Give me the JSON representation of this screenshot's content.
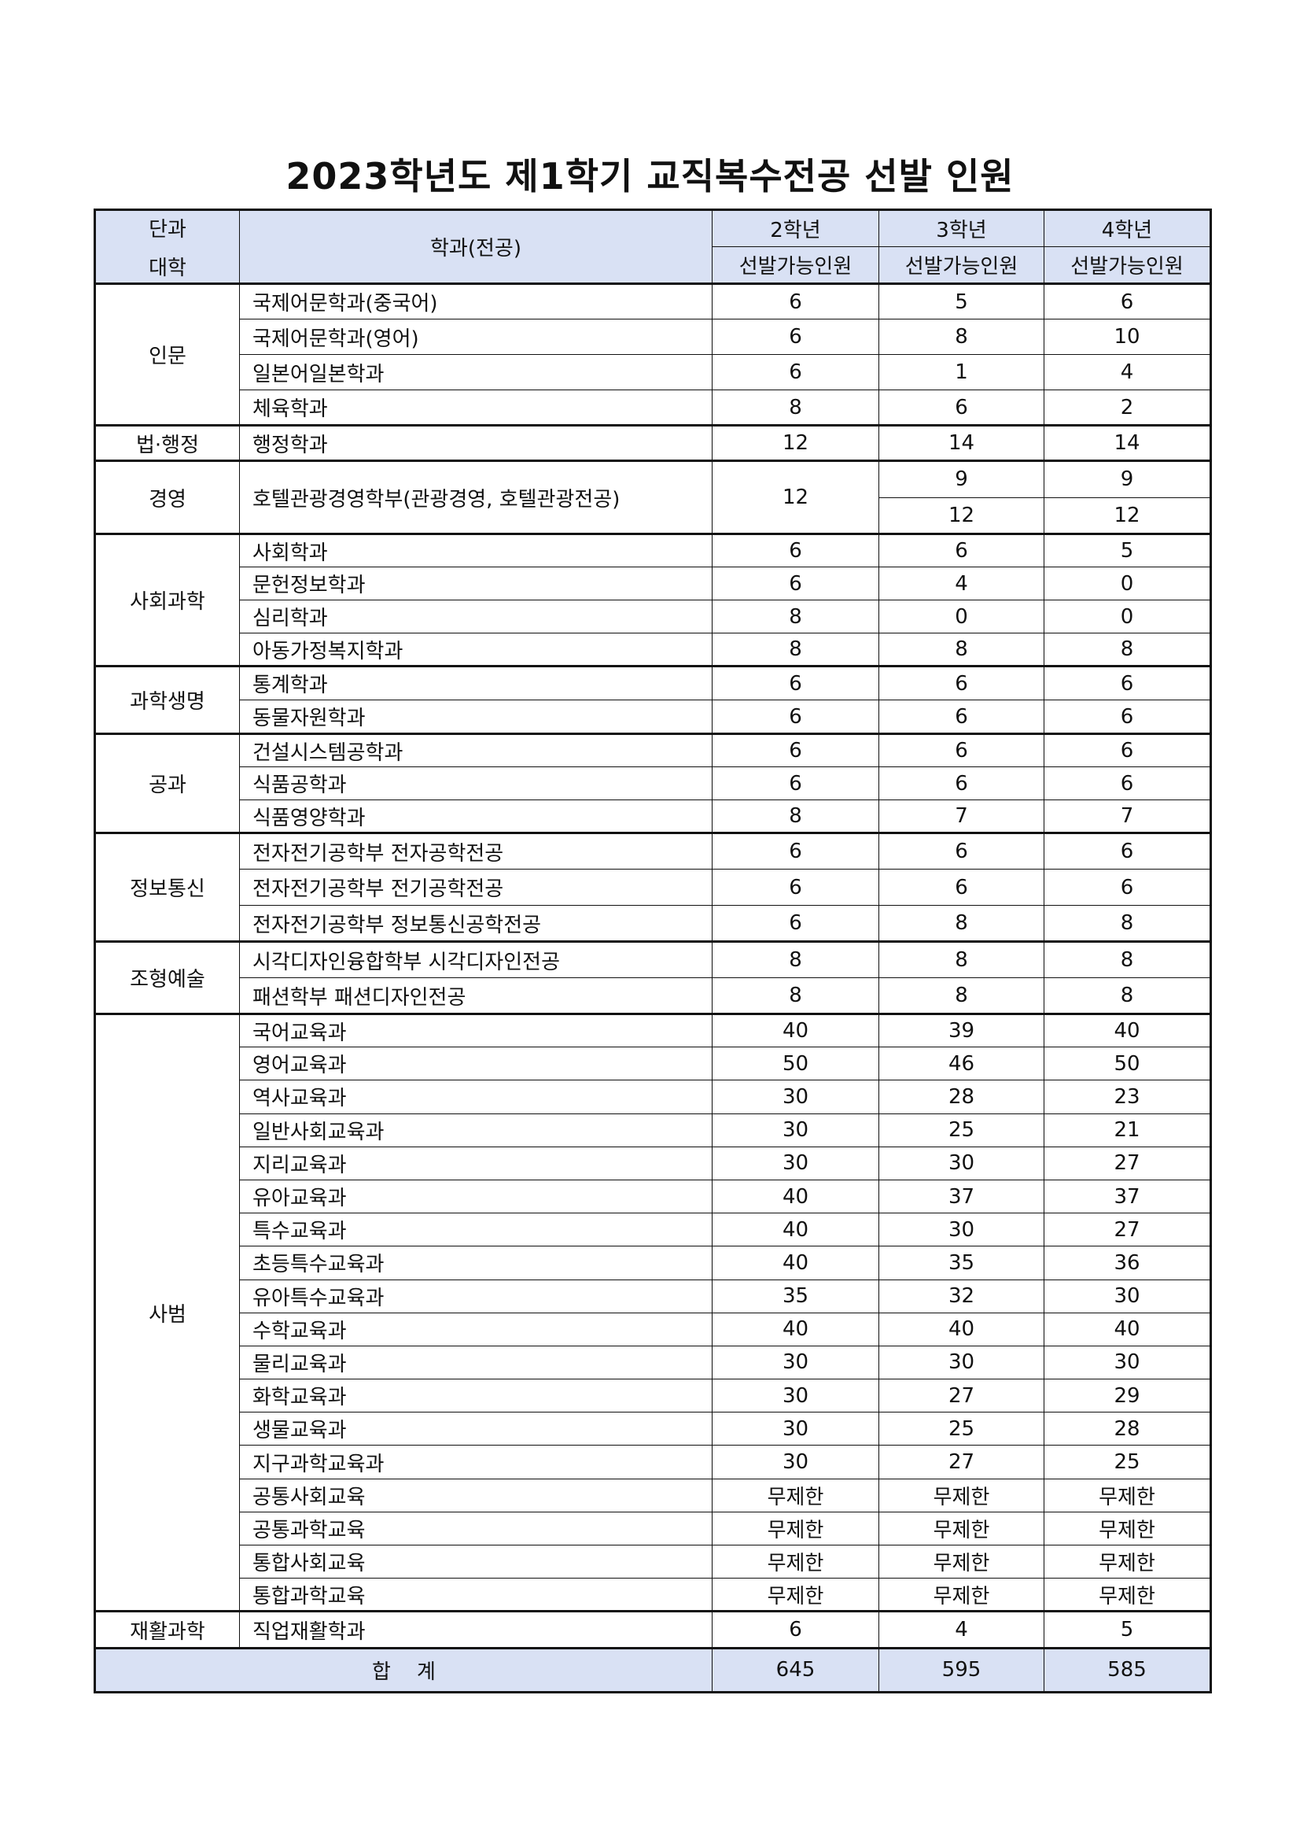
{
  "title": "2023학년도 제1학기 교직복수전공 선발 인원",
  "header": {
    "college_line1": "단과",
    "college_line2": "대학",
    "department": "학과(전공)",
    "grades": [
      "2학년",
      "3학년",
      "4학년"
    ],
    "sub": [
      "선발가능인원",
      "선발가능인원",
      "선발가능인원"
    ]
  },
  "groups": [
    {
      "college": "인문",
      "rows": [
        {
          "dept": "국제어문학과(중국어)",
          "v": [
            "6",
            "5",
            "6"
          ]
        },
        {
          "dept": "국제어문학과(영어)",
          "v": [
            "6",
            "8",
            "10"
          ]
        },
        {
          "dept": "일본어일본학과",
          "v": [
            "6",
            "1",
            "4"
          ]
        },
        {
          "dept": "체육학과",
          "v": [
            "8",
            "6",
            "2"
          ]
        }
      ]
    },
    {
      "college": "법·행정",
      "rows": [
        {
          "dept": "행정학과",
          "v": [
            "12",
            "14",
            "14"
          ]
        }
      ]
    },
    {
      "college": "경영",
      "split": true,
      "rows": [
        {
          "dept": "호텔관광경영학부(관광경영, 호텔관광전공)",
          "v": [
            "12",
            "9",
            "9"
          ]
        },
        {
          "dept": "",
          "v": [
            "",
            "12",
            "12"
          ]
        }
      ]
    },
    {
      "college": "사회과학",
      "rows": [
        {
          "dept": "사회학과",
          "v": [
            "6",
            "6",
            "5"
          ]
        },
        {
          "dept": "문헌정보학과",
          "v": [
            "6",
            "4",
            "0"
          ]
        },
        {
          "dept": "심리학과",
          "v": [
            "8",
            "0",
            "0"
          ]
        },
        {
          "dept": "아동가정복지학과",
          "v": [
            "8",
            "8",
            "8"
          ]
        }
      ]
    },
    {
      "college": "과학생명",
      "rows": [
        {
          "dept": "통계학과",
          "v": [
            "6",
            "6",
            "6"
          ]
        },
        {
          "dept": "동물자원학과",
          "v": [
            "6",
            "6",
            "6"
          ]
        }
      ]
    },
    {
      "college": "공과",
      "rows": [
        {
          "dept": "건설시스템공학과",
          "v": [
            "6",
            "6",
            "6"
          ]
        },
        {
          "dept": "식품공학과",
          "v": [
            "6",
            "6",
            "6"
          ]
        },
        {
          "dept": "식품영양학과",
          "v": [
            "8",
            "7",
            "7"
          ]
        }
      ]
    },
    {
      "college": "정보통신",
      "rows": [
        {
          "dept": "전자전기공학부 전자공학전공",
          "v": [
            "6",
            "6",
            "6"
          ]
        },
        {
          "dept": "전자전기공학부 전기공학전공",
          "v": [
            "6",
            "6",
            "6"
          ]
        },
        {
          "dept": "전자전기공학부 정보통신공학전공",
          "v": [
            "6",
            "8",
            "8"
          ]
        }
      ]
    },
    {
      "college": "조형예술",
      "rows": [
        {
          "dept": "시각디자인융합학부 시각디자인전공",
          "v": [
            "8",
            "8",
            "8"
          ]
        },
        {
          "dept": "패션학부 패션디자인전공",
          "v": [
            "8",
            "8",
            "8"
          ]
        }
      ]
    },
    {
      "college": "사범",
      "rows": [
        {
          "dept": "국어교육과",
          "v": [
            "40",
            "39",
            "40"
          ]
        },
        {
          "dept": "영어교육과",
          "v": [
            "50",
            "46",
            "50"
          ]
        },
        {
          "dept": "역사교육과",
          "v": [
            "30",
            "28",
            "23"
          ]
        },
        {
          "dept": "일반사회교육과",
          "v": [
            "30",
            "25",
            "21"
          ]
        },
        {
          "dept": "지리교육과",
          "v": [
            "30",
            "30",
            "27"
          ]
        },
        {
          "dept": "유아교육과",
          "v": [
            "40",
            "37",
            "37"
          ]
        },
        {
          "dept": "특수교육과",
          "v": [
            "40",
            "30",
            "27"
          ]
        },
        {
          "dept": "초등특수교육과",
          "v": [
            "40",
            "35",
            "36"
          ]
        },
        {
          "dept": "유아특수교육과",
          "v": [
            "35",
            "32",
            "30"
          ]
        },
        {
          "dept": "수학교육과",
          "v": [
            "40",
            "40",
            "40"
          ]
        },
        {
          "dept": "물리교육과",
          "v": [
            "30",
            "30",
            "30"
          ]
        },
        {
          "dept": "화학교육과",
          "v": [
            "30",
            "27",
            "29"
          ]
        },
        {
          "dept": "생물교육과",
          "v": [
            "30",
            "25",
            "28"
          ]
        },
        {
          "dept": "지구과학교육과",
          "v": [
            "30",
            "27",
            "25"
          ]
        },
        {
          "dept": "공통사회교육",
          "v": [
            "무제한",
            "무제한",
            "무제한"
          ]
        },
        {
          "dept": "공통과학교육",
          "v": [
            "무제한",
            "무제한",
            "무제한"
          ]
        },
        {
          "dept": "통합사회교육",
          "v": [
            "무제한",
            "무제한",
            "무제한"
          ]
        },
        {
          "dept": "통합과학교육",
          "v": [
            "무제한",
            "무제한",
            "무제한"
          ]
        }
      ]
    },
    {
      "college": "재활과학",
      "rows": [
        {
          "dept": "직업재활학과",
          "v": [
            "6",
            "4",
            "5"
          ]
        }
      ]
    }
  ],
  "total": {
    "label": "합    계",
    "v": [
      "645",
      "595",
      "585"
    ]
  },
  "colors": {
    "header_bg": "#d9e1f4",
    "border": "#111111"
  }
}
